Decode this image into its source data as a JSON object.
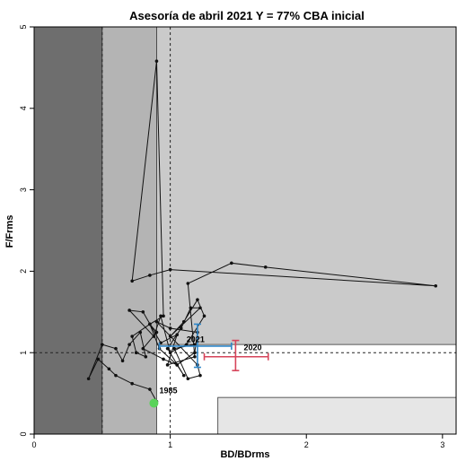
{
  "chart_data": {
    "type": "line",
    "title": "Asesoría de abril 2021 Y = 77% CBA inicial",
    "xlabel": "BD/BDrms",
    "ylabel": "F/Frms",
    "xlim": [
      0,
      3.1
    ],
    "ylim": [
      0,
      5
    ],
    "x_ticks": [
      "0",
      "1",
      "2",
      "3"
    ],
    "y_ticks": [
      "0",
      "1",
      "2",
      "3",
      "4",
      "5"
    ],
    "grid": false,
    "colors": {
      "dark_zone": "#6e6e6e",
      "mid_zone": "#b4b4b4",
      "light_zone": "#cacaca",
      "lightest_zone": "#e6e6e6",
      "uncertainty_2020": "#d6445a",
      "uncertainty_2021": "#2f86c8",
      "start_point": "#5ad35a"
    },
    "zones": [
      {
        "x": [
          0,
          0.5
        ],
        "y": [
          0,
          5
        ],
        "color": "dark_zone"
      },
      {
        "x": [
          0.5,
          0.9
        ],
        "y": [
          0,
          5
        ],
        "color": "mid_zone"
      },
      {
        "x": [
          0.9,
          3.1
        ],
        "y": [
          1.1,
          5
        ],
        "color": "light_zone"
      },
      {
        "x": [
          1.35,
          3.1
        ],
        "y": [
          0,
          0.45
        ],
        "color": "lightest_zone"
      }
    ],
    "reference_lines": {
      "vertical": [
        0.5,
        1.0
      ],
      "horizontal": [
        1.0
      ]
    },
    "series": [
      {
        "x": [
          0.9,
          0.85,
          0.72,
          0.6,
          0.55,
          0.47,
          0.4,
          0.5,
          0.6,
          0.65,
          0.7,
          0.78,
          0.82,
          0.75,
          0.72,
          0.85,
          0.9,
          0.8,
          0.95,
          1.05,
          1.1,
          0.98,
          1.08,
          1.15,
          1.22,
          1.0,
          1.1,
          1.2,
          1.25,
          1.12,
          1.0,
          0.93,
          0.88,
          0.7,
          0.8,
          0.93,
          1.05,
          0.98,
          1.18,
          1.13,
          1.45,
          1.7,
          2.95,
          1.0,
          0.85,
          0.72,
          0.9,
          0.95,
          0.85,
          0.92,
          1.05,
          1.18,
          1.2,
          1.0,
          0.9,
          1.2,
          1.22,
          1.13,
          1.03,
          1.18
        ],
        "y": [
          0.4,
          0.55,
          0.62,
          0.72,
          0.8,
          0.92,
          0.68,
          1.1,
          1.05,
          0.9,
          1.1,
          1.25,
          0.95,
          1.0,
          1.2,
          1.35,
          1.25,
          1.05,
          0.92,
          0.85,
          0.72,
          1.05,
          1.3,
          1.55,
          1.55,
          1.2,
          1.38,
          1.65,
          1.45,
          1.1,
          1.0,
          1.45,
          1.2,
          1.52,
          1.5,
          1.12,
          1.22,
          0.85,
          0.95,
          1.85,
          2.1,
          2.05,
          1.82,
          2.02,
          1.95,
          1.88,
          4.58,
          1.45,
          1.35,
          1.05,
          0.85,
          1.0,
          1.25,
          1.3,
          1.38,
          0.85,
          0.72,
          0.68,
          1.05,
          1.1
        ]
      }
    ],
    "point_labels": [
      {
        "text": "1985",
        "x": 0.92,
        "y": 0.5
      },
      {
        "text": "2021",
        "x": 1.12,
        "y": 1.13
      },
      {
        "text": "2020",
        "x": 1.54,
        "y": 1.03
      }
    ],
    "start_point": {
      "x": 0.88,
      "y": 0.38
    },
    "uncertainty": [
      {
        "name": "2020",
        "x": 1.48,
        "y": 0.95,
        "xerr": [
          1.25,
          1.72
        ],
        "yerr": [
          0.78,
          1.15
        ],
        "color": "uncertainty_2020"
      },
      {
        "name": "2021",
        "x": 1.2,
        "y": 1.08,
        "xerr": [
          0.92,
          1.45
        ],
        "yerr": [
          0.82,
          1.35
        ],
        "color": "uncertainty_2021"
      }
    ]
  }
}
